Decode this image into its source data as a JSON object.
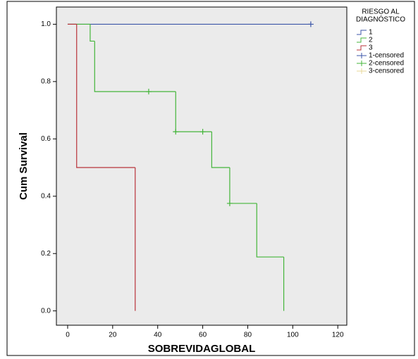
{
  "chart_data": {
    "type": "survival",
    "x_label": "SOBREVIDAGLOBAL",
    "y_label": "Cum Survival",
    "legend_title": [
      "RIESGO AL",
      "DIAGNÓSTICO"
    ],
    "xlim": [
      -5,
      124
    ],
    "xticks": [
      0,
      20,
      40,
      60,
      80,
      100,
      120
    ],
    "ylim": [
      -0.05,
      1.06
    ],
    "yticks": [
      {
        "value": 0,
        "label": "0.0"
      },
      {
        "value": 0.2,
        "label": "0.2"
      },
      {
        "value": 0.4,
        "label": "0.4"
      },
      {
        "value": 0.6,
        "label": "0.6"
      },
      {
        "value": 0.8,
        "label": "0.8"
      },
      {
        "value": 1,
        "label": "1.0"
      }
    ],
    "series": [
      {
        "name": "1",
        "kind": "step",
        "color": "#3b56a8",
        "x": [
          0,
          108
        ],
        "values": [
          1,
          1
        ]
      },
      {
        "name": "2",
        "kind": "step",
        "color": "#44b53a",
        "x": [
          0,
          10,
          12,
          48,
          64,
          72,
          84,
          96
        ],
        "values": [
          1,
          0.941,
          0.765,
          0.625,
          0.5,
          0.375,
          0.188,
          0
        ]
      },
      {
        "name": "3",
        "kind": "step",
        "color": "#b8333a",
        "x": [
          0,
          4,
          30
        ],
        "values": [
          1,
          0.5,
          0
        ]
      },
      {
        "name": "1-censored",
        "kind": "censored",
        "color": "#3b56a8",
        "x": [
          108
        ],
        "values": [
          1
        ]
      },
      {
        "name": "2-censored",
        "kind": "censored",
        "color": "#44b53a",
        "x": [
          36,
          48,
          60,
          72
        ],
        "values": [
          0.765,
          0.625,
          0.625,
          0.375
        ]
      },
      {
        "name": "3-censored",
        "kind": "censored",
        "color": "#e8d89a",
        "x": [],
        "values": []
      }
    ]
  }
}
